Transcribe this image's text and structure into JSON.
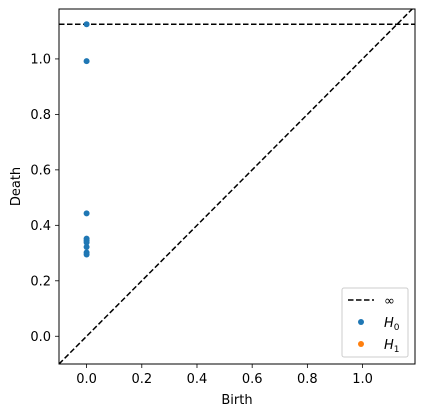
{
  "chart_data": {
    "type": "scatter",
    "title": "",
    "xlabel": "Birth",
    "ylabel": "Death",
    "xlim": [
      -0.1,
      1.19
    ],
    "ylim": [
      -0.1,
      1.18
    ],
    "xticks": [
      0.0,
      0.2,
      0.4,
      0.6,
      0.8,
      1.0
    ],
    "yticks": [
      0.0,
      0.2,
      0.4,
      0.6,
      0.8,
      1.0
    ],
    "xtick_labels": [
      "0.0",
      "0.2",
      "0.4",
      "0.6",
      "0.8",
      "1.0"
    ],
    "ytick_labels": [
      "0.0",
      "0.2",
      "0.4",
      "0.6",
      "0.8",
      "1.0"
    ],
    "grid": false,
    "infinity_line": {
      "y": 1.125,
      "color": "#000000",
      "style": "dashed"
    },
    "diagonal": {
      "style": "dashed",
      "color": "#000000"
    },
    "series": [
      {
        "name": "H0",
        "label_base": "H",
        "label_sub": "0",
        "color": "#1f77b4",
        "points": [
          [
            0.0,
            1.125
          ],
          [
            0.0,
            0.992
          ],
          [
            0.0,
            0.443
          ],
          [
            0.0,
            0.352
          ],
          [
            0.0,
            0.345
          ],
          [
            0.0,
            0.338
          ],
          [
            0.0,
            0.322
          ],
          [
            0.0,
            0.302
          ],
          [
            0.0,
            0.295
          ]
        ]
      },
      {
        "name": "H1",
        "label_base": "H",
        "label_sub": "1",
        "color": "#ff7f0e",
        "points": []
      }
    ],
    "legend": {
      "placement": "lower-right",
      "entries": [
        {
          "type": "line",
          "label": "∞"
        },
        {
          "type": "marker",
          "series": 0
        },
        {
          "type": "marker",
          "series": 1
        }
      ]
    }
  }
}
